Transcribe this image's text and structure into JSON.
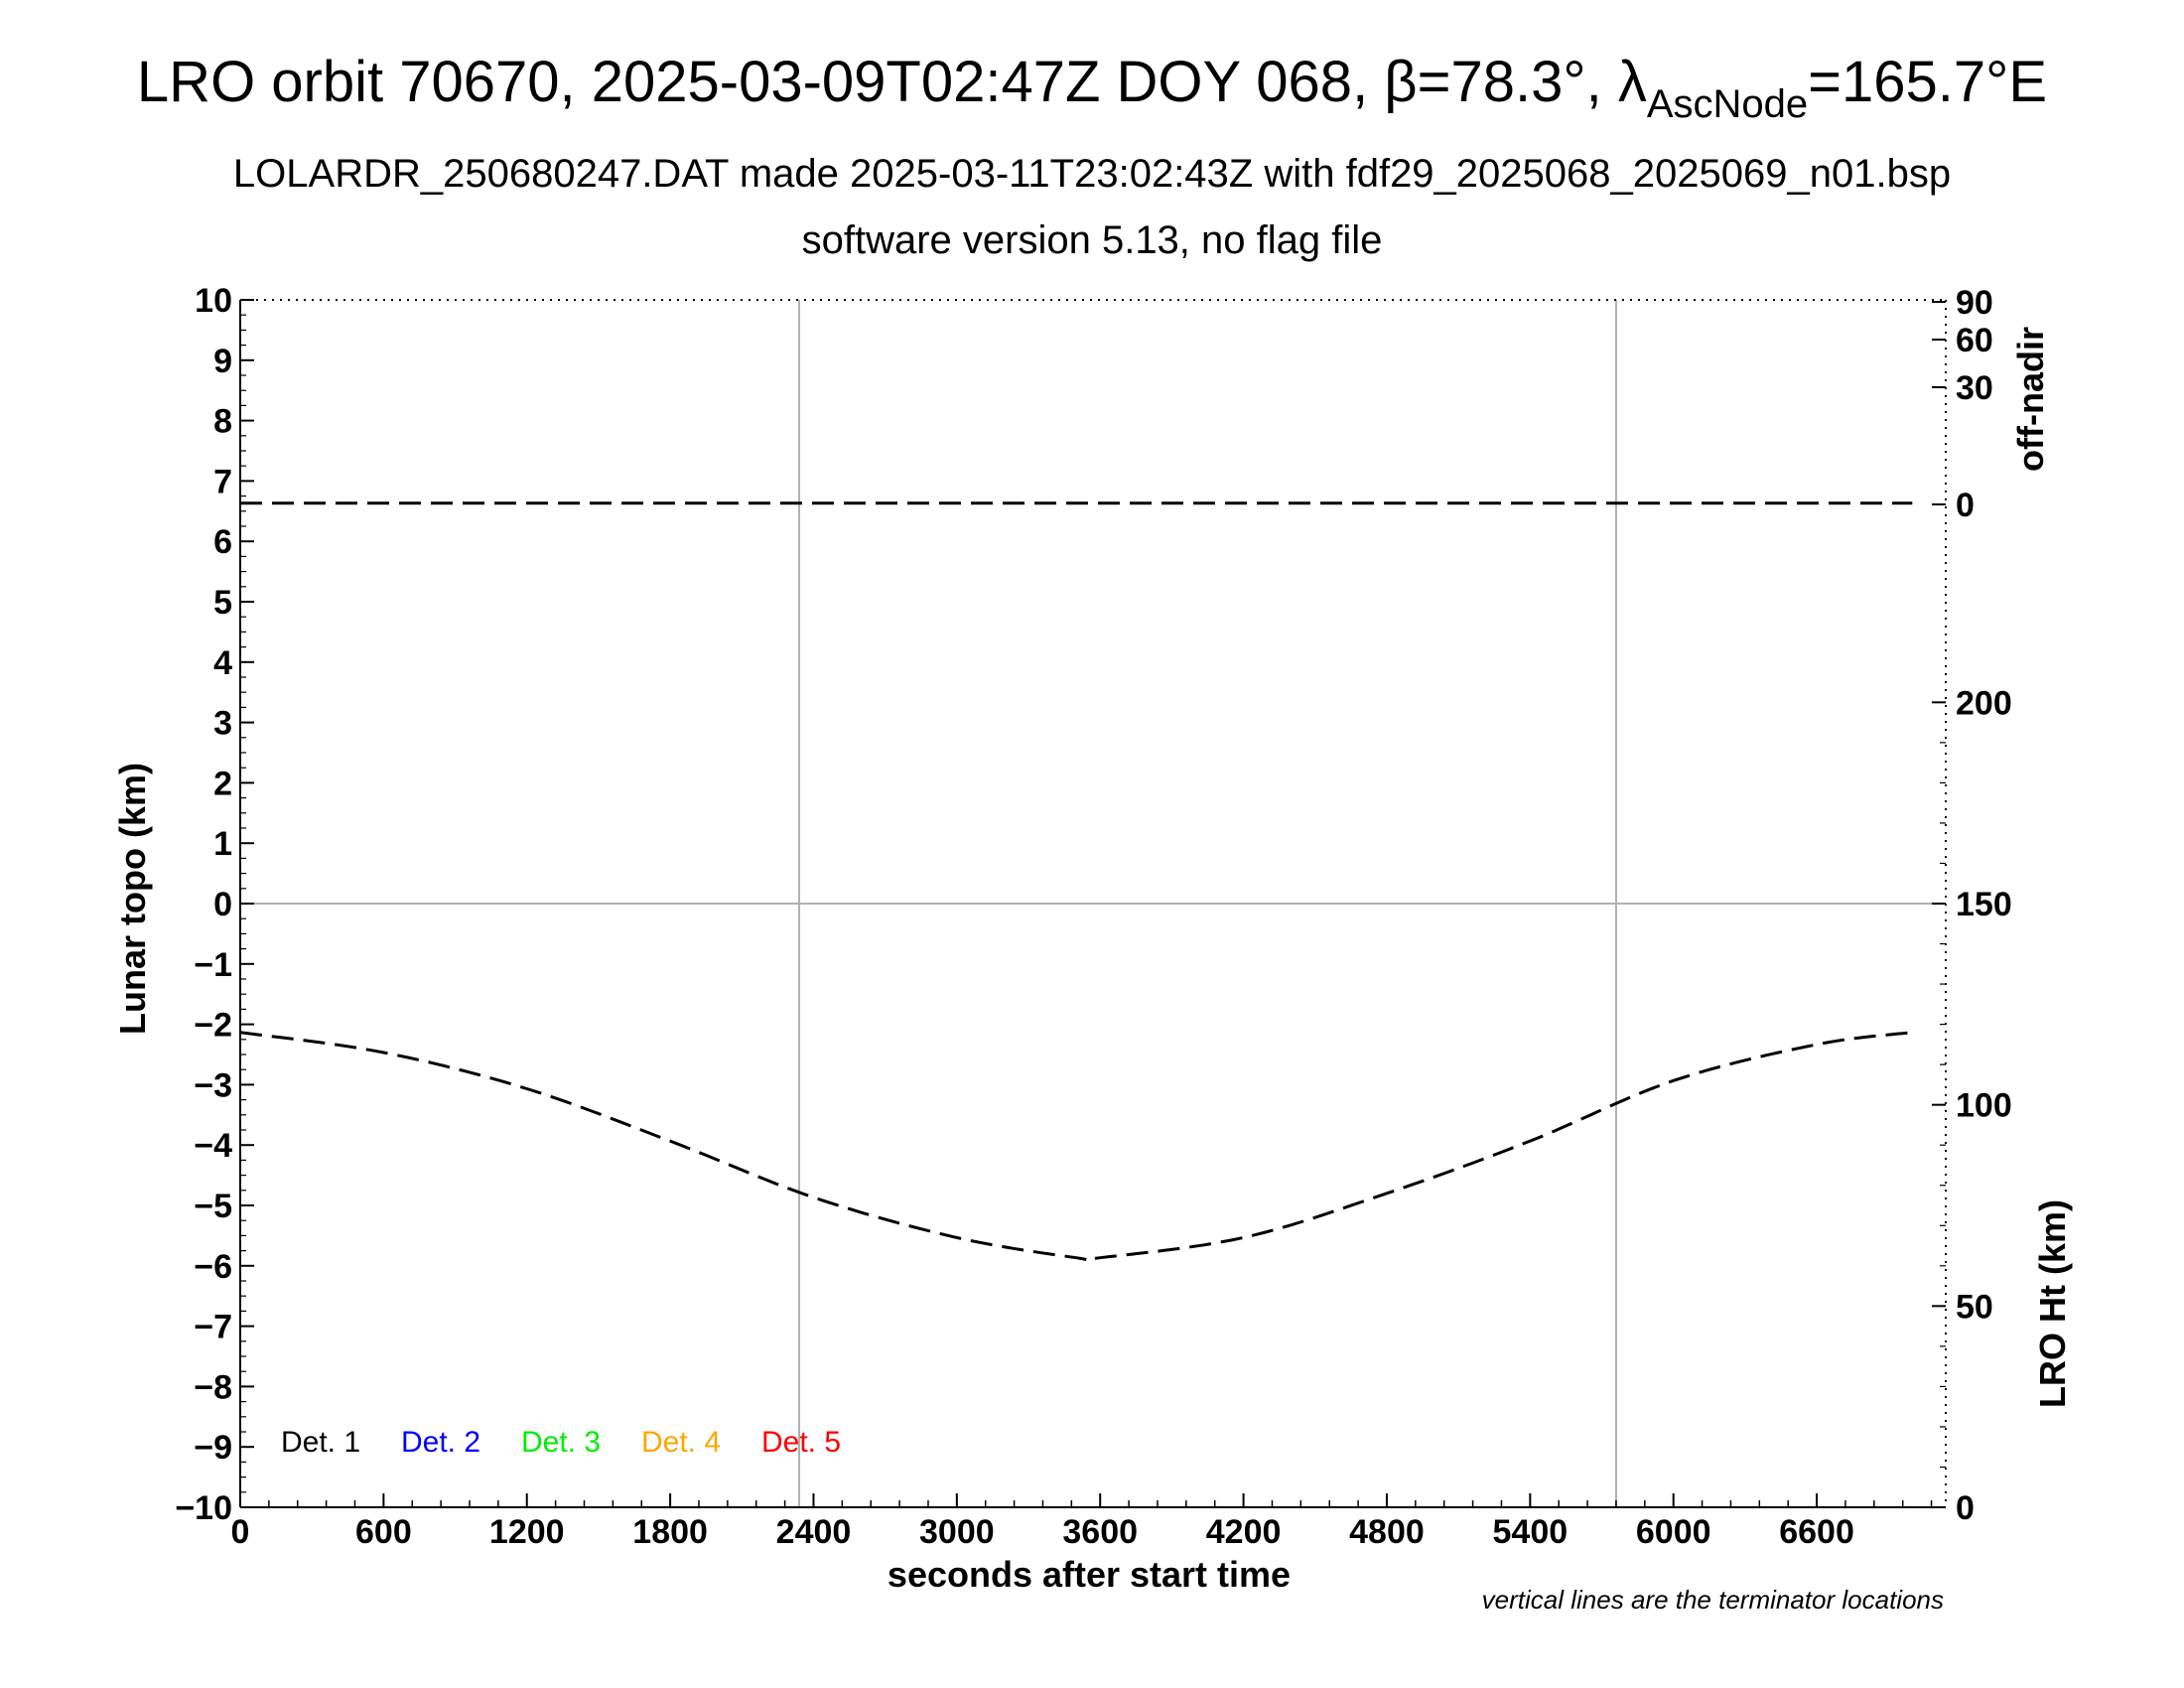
{
  "title": {
    "prefix": "LRO orbit 70670, 2025-03-09T02:47Z DOY 068, β=78.3°, λ",
    "subscript": "AscNode",
    "suffix": "=165.7°E"
  },
  "subtitle1": "LOLARDR_250680247.DAT made 2025-03-11T23:02:43Z with fdf29_2025068_2025069_n01.bsp",
  "subtitle2": "software version 5.13, no flag file",
  "note": "vertical lines are the terminator locations",
  "colors": {
    "det1": "#000000",
    "det2": "#0000ff",
    "det3": "#00ee00",
    "det4": "#ffa500",
    "det5": "#ff0000",
    "grid": "#b0b0b0"
  },
  "chart_data": {
    "type": "line",
    "xlabel": "seconds after start time",
    "xlim": [
      0,
      7140
    ],
    "xticks": [
      0,
      600,
      1200,
      1800,
      2400,
      3000,
      3600,
      4200,
      4800,
      5400,
      6000,
      6600
    ],
    "left_axis": {
      "label": "Lunar topo (km)",
      "ylim": [
        -10,
        10
      ],
      "ticks": [
        10,
        9,
        8,
        7,
        6,
        5,
        4,
        3,
        2,
        1,
        0,
        -1,
        -2,
        -3,
        -4,
        -5,
        -6,
        -7,
        -8,
        -9,
        -10
      ],
      "tick_labels": [
        "10",
        "9",
        "8",
        "7",
        "6",
        "5",
        "4",
        "3",
        "2",
        "1",
        "0",
        "−1",
        "−2",
        "−3",
        "−4",
        "−5",
        "−6",
        "−7",
        "−8",
        "−9",
        "−10"
      ]
    },
    "right_upper_axis": {
      "label": "off-nadir",
      "ticks": [
        "90",
        "60",
        "30",
        "0"
      ]
    },
    "right_lower_axis": {
      "label": "LRO Ht (km)",
      "ylim": [
        0,
        300
      ],
      "ticks": [
        "200",
        "150",
        "100",
        "50",
        "0"
      ]
    },
    "terminator_lines_x": [
      2340,
      5760
    ],
    "horizontal_zero_line": 0,
    "legend": [
      "Det. 1",
      "Det. 2",
      "Det. 3",
      "Det. 4",
      "Det. 5"
    ],
    "series": [
      {
        "name": "off-nadir",
        "axis": "right_upper",
        "style": "dashed",
        "x": [
          0,
          1200,
          2400,
          3600,
          4800,
          6000,
          7000
        ],
        "y": [
          0.3,
          0.3,
          0.3,
          0.3,
          0.3,
          0.3,
          0.3
        ]
      },
      {
        "name": "LRO Ht (km)",
        "axis": "right_lower",
        "style": "dashed",
        "x": [
          0,
          600,
          1200,
          1800,
          2400,
          3000,
          3500,
          3600,
          4200,
          4800,
          5400,
          6000,
          6600,
          7000
        ],
        "y": [
          118,
          113,
          104,
          91,
          77,
          67,
          62,
          62,
          67,
          78,
          91,
          106,
          115,
          118
        ]
      }
    ]
  }
}
